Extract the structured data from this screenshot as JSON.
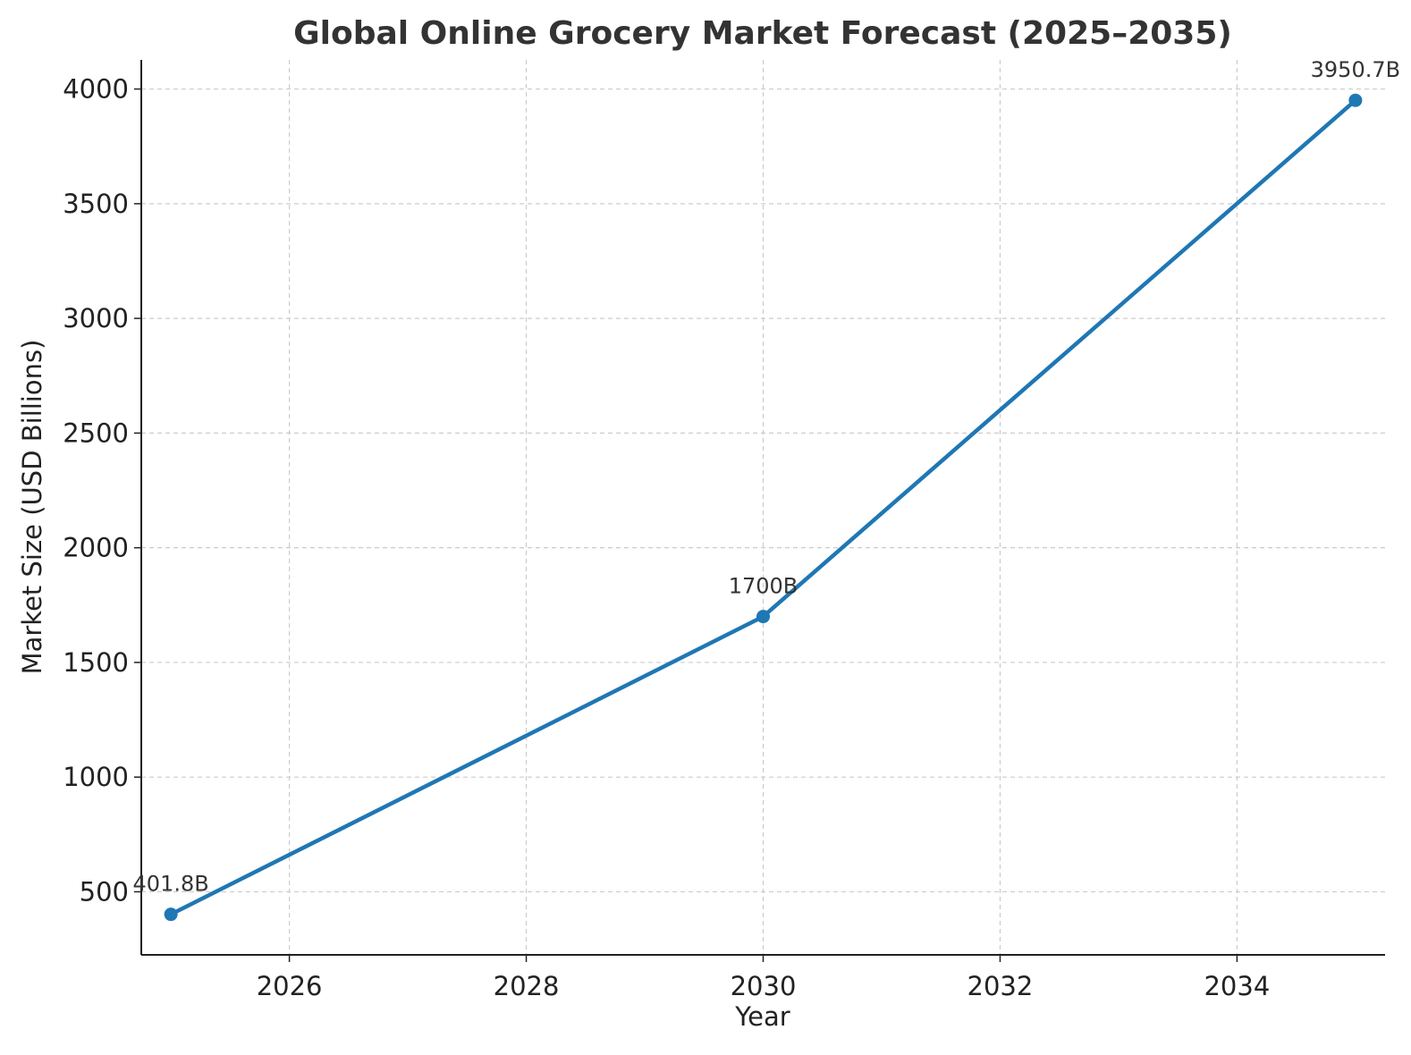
{
  "chart_data": {
    "type": "line",
    "title": "Global Online Grocery Market Forecast (2025–2035)",
    "xlabel": "Year",
    "ylabel": "Market Size (USD Billions)",
    "x": [
      2025,
      2030,
      2035
    ],
    "series": [
      {
        "values": [
          401.8,
          1700,
          3950.7
        ],
        "data_labels": [
          "401.8B",
          "1700B",
          "3950.7B"
        ],
        "color": "#1f77b4"
      }
    ],
    "xlim": [
      2024.75,
      2035.25
    ],
    "ylim": [
      225,
      4127
    ],
    "xticks": [
      2026,
      2028,
      2030,
      2032,
      2034
    ],
    "xtick_labels": [
      "2026",
      "2028",
      "2030",
      "2032",
      "2034"
    ],
    "yticks": [
      500,
      1000,
      1500,
      2000,
      2500,
      3000,
      3500,
      4000
    ],
    "ytick_labels": [
      "500",
      "1000",
      "1500",
      "2000",
      "2500",
      "3000",
      "3500",
      "4000"
    ],
    "grid": true,
    "legend": "none"
  }
}
